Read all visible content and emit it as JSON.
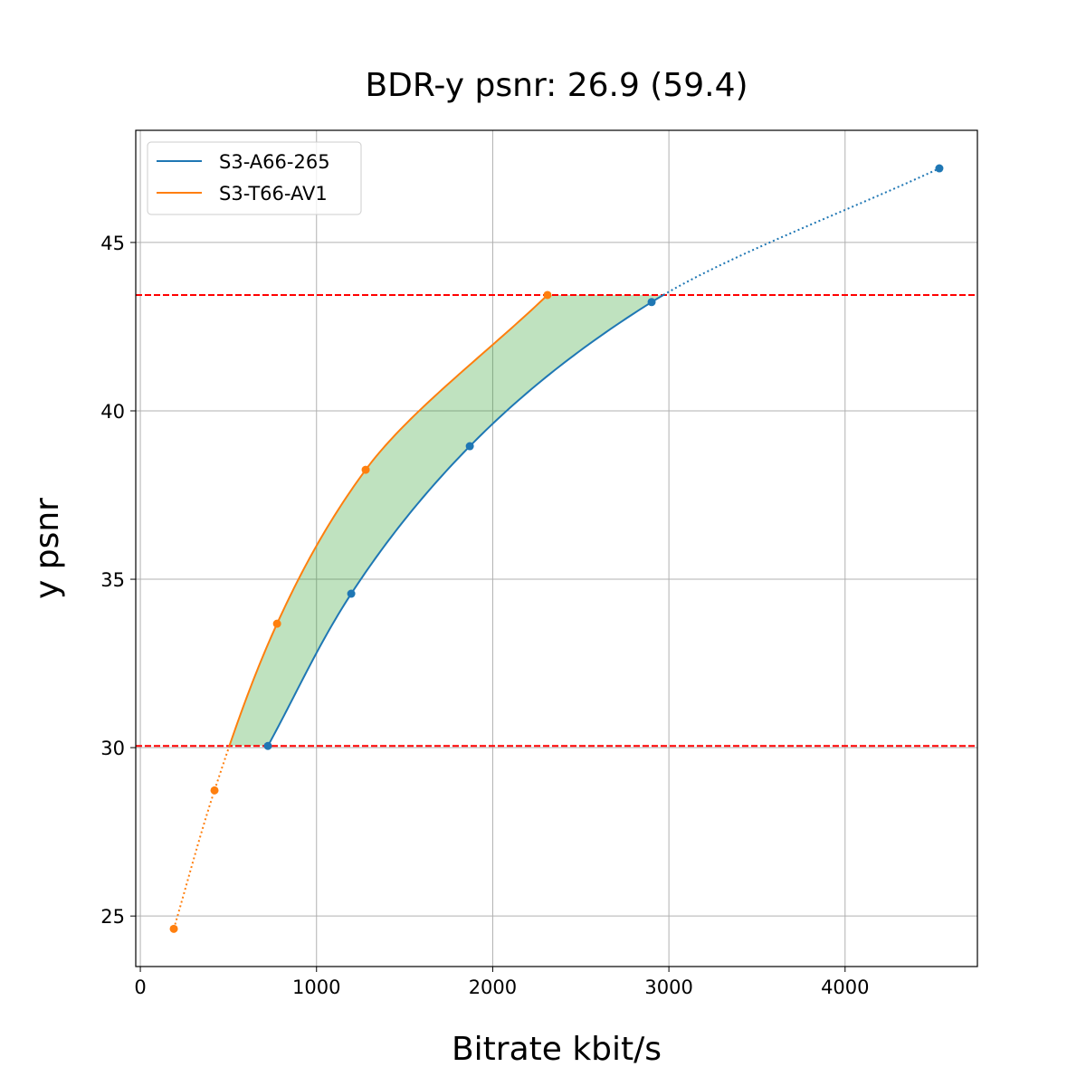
{
  "chart_data": {
    "type": "line",
    "title": "BDR-y psnr: 26.9 (59.4)",
    "xlabel": "Bitrate kbit/s",
    "ylabel": "y psnr",
    "xlim": [
      -26,
      4751
    ],
    "ylim": [
      23.5,
      48.33
    ],
    "xticks": [
      0,
      1000,
      2000,
      3000,
      4000
    ],
    "yticks": [
      25,
      30,
      35,
      40,
      45
    ],
    "grid": true,
    "legend_position": "top-left",
    "series": [
      {
        "name": "S3-A66-265",
        "color": "#1f77b4",
        "x": [
          724,
          1197,
          1870,
          2902,
          4535
        ],
        "y": [
          30.05,
          34.57,
          38.95,
          43.23,
          47.2
        ]
      },
      {
        "name": "S3-T66-AV1",
        "color": "#ff7f0e",
        "x": [
          190,
          421,
          776,
          1279,
          2311
        ],
        "y": [
          24.62,
          28.73,
          33.68,
          38.25,
          43.44
        ]
      }
    ],
    "reference_lines": {
      "color": "#ff0000",
      "y": [
        30.05,
        43.44
      ]
    },
    "fill_color": "#2ca02c"
  }
}
